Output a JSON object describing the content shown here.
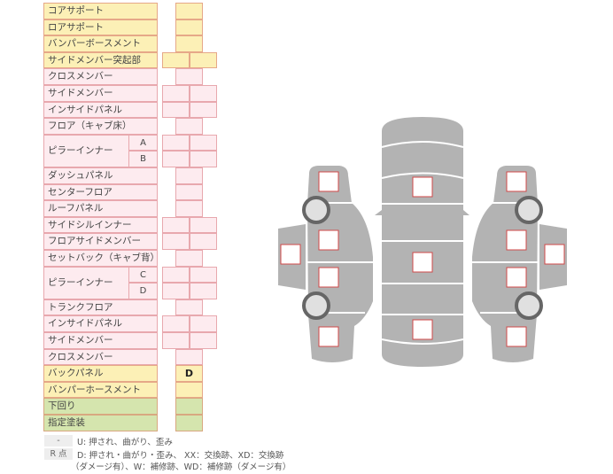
{
  "colors": {
    "yellow": "#fcf0b6",
    "pink": "#fdebef",
    "green": "#d5e5ae",
    "body": "#b3b3b3",
    "marker_border": "#d04848"
  },
  "rows": [
    {
      "label": "コアサポート",
      "color": "yellow",
      "cells": 1
    },
    {
      "label": "ロアサポート",
      "color": "yellow",
      "cells": 1
    },
    {
      "label": "バンパーボースメント",
      "color": "yellow",
      "cells": 1
    },
    {
      "label": "サイドメンバー突起部",
      "color": "yellow",
      "cells": 2
    },
    {
      "label": "クロスメンバー",
      "color": "pink",
      "cells": 1
    },
    {
      "label": "サイドメンバー",
      "color": "pink",
      "cells": 2
    },
    {
      "label": "インサイドパネル",
      "color": "pink",
      "cells": 2
    },
    {
      "label": "フロア（キャブ床）",
      "color": "pink",
      "cells": 1
    },
    {
      "label": "ピラーインナー",
      "color": "pink",
      "cells": 2,
      "subs": [
        "A",
        "B"
      ]
    },
    {
      "label": "ダッシュパネル",
      "color": "pink",
      "cells": 1
    },
    {
      "label": "センターフロア",
      "color": "pink",
      "cells": 1
    },
    {
      "label": "ルーフパネル",
      "color": "pink",
      "cells": 1
    },
    {
      "label": "サイドシルインナー",
      "color": "pink",
      "cells": 2
    },
    {
      "label": "フロアサイドメンバー",
      "color": "pink",
      "cells": 2
    },
    {
      "label": "セットバック（キャブ背）",
      "color": "pink",
      "cells": 1
    },
    {
      "label": "ピラーインナー",
      "color": "pink",
      "cells": 2,
      "subs": [
        "C",
        "D"
      ]
    },
    {
      "label": "トランクフロア",
      "color": "pink",
      "cells": 1
    },
    {
      "label": "インサイドパネル",
      "color": "pink",
      "cells": 2
    },
    {
      "label": "サイドメンバー",
      "color": "pink",
      "cells": 2
    },
    {
      "label": "クロスメンバー",
      "color": "pink",
      "cells": 1
    },
    {
      "label": "バックパネル",
      "color": "yellow",
      "cells": 1,
      "value": "D"
    },
    {
      "label": "バンパーホースメント",
      "color": "yellow",
      "cells": 1
    },
    {
      "label": "下回り",
      "color": "green",
      "cells": 1
    },
    {
      "label": "指定塗装",
      "color": "green",
      "cells": 1
    }
  ],
  "legend": [
    {
      "key": "-",
      "text": "U: 押され、曲がり、歪み"
    },
    {
      "key": "R 点",
      "text": "D: 押され・曲がり・歪み、 XX：交換跡、XD：交換跡",
      "text2": "（ダメージ有）、W：補修跡、WD：補修跡（ダメージ有）"
    }
  ]
}
